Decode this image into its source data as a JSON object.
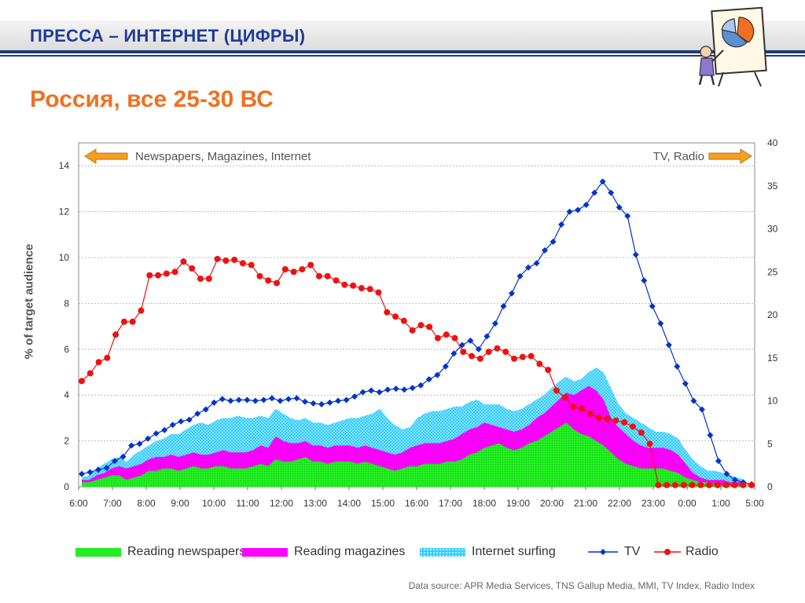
{
  "header": {
    "title": "ПРЕССА – ИНТЕРНЕТ  (ЦИФРЫ)",
    "subtitle": "Россия, все 25-30 ВС"
  },
  "colors": {
    "title": "#1f3a9a",
    "subtitle": "#f07020",
    "newspapers": "#22ee22",
    "magazines": "#ff00ff",
    "internet": "#33ccff",
    "tv": "#0033cc",
    "radio": "#ee1111",
    "arrow": "#f5a020"
  },
  "source_text": "Data source: APR Media Services, TNS Gallup Media, MMI, TV Index, Radio Index",
  "clipart_icon": "presenter-pie-chart-icon",
  "chart_data": {
    "type": "area",
    "xlabel": "",
    "ylabel": "% of  target audience",
    "left_axis": {
      "min": 0,
      "max": 15,
      "ticks": [
        0,
        2,
        4,
        6,
        8,
        10,
        12,
        14
      ]
    },
    "right_axis": {
      "min": 0,
      "max": 40,
      "ticks": [
        0,
        5,
        10,
        15,
        20,
        25,
        30,
        35,
        40
      ]
    },
    "x_ticks": [
      "6:00",
      "7:00",
      "8:00",
      "9:00",
      "10:00",
      "11:00",
      "12:00",
      "13:00",
      "14:00",
      "15:00",
      "16:00",
      "17:00",
      "18:00",
      "19:00",
      "20:00",
      "21:00",
      "22:00",
      "23:00",
      "0:00",
      "1:00",
      "5:00"
    ],
    "left_arrow_label": "Newspapers, Magazines, Internet",
    "right_arrow_label": "TV, Radio",
    "grid": true,
    "legend_position": "bottom",
    "series": [
      {
        "name": "Reading newspapers",
        "kind": "area",
        "axis": "left",
        "values": [
          0.2,
          0.2,
          0.3,
          0.4,
          0.5,
          0.5,
          0.3,
          0.4,
          0.5,
          0.7,
          0.7,
          0.8,
          0.8,
          0.7,
          0.8,
          0.9,
          0.8,
          0.8,
          0.9,
          0.9,
          0.8,
          0.8,
          0.8,
          0.9,
          1.0,
          0.9,
          1.2,
          1.1,
          1.1,
          1.2,
          1.3,
          1.1,
          1.1,
          1.0,
          1.1,
          1.1,
          1.1,
          1.0,
          1.1,
          1.0,
          0.9,
          0.8,
          0.7,
          0.8,
          0.9,
          0.9,
          1.0,
          1.0,
          1.0,
          1.1,
          1.1,
          1.2,
          1.4,
          1.5,
          1.7,
          1.8,
          1.9,
          1.7,
          1.6,
          1.7,
          1.9,
          2.0,
          2.2,
          2.4,
          2.6,
          2.8,
          2.5,
          2.3,
          2.2,
          2.0,
          1.8,
          1.5,
          1.2,
          1.0,
          0.9,
          0.8,
          0.8,
          0.8,
          0.8,
          0.7,
          0.6,
          0.4,
          0.3,
          0.2,
          0.2,
          0.1,
          0.1,
          0.1,
          0.1,
          0.1
        ]
      },
      {
        "name": "Reading magazines",
        "kind": "area",
        "axis": "left",
        "values": [
          0.3,
          0.3,
          0.5,
          0.6,
          0.8,
          0.9,
          0.8,
          0.9,
          1.0,
          1.2,
          1.3,
          1.3,
          1.4,
          1.3,
          1.4,
          1.5,
          1.4,
          1.4,
          1.5,
          1.6,
          1.5,
          1.5,
          1.5,
          1.6,
          1.8,
          1.7,
          2.2,
          2.0,
          1.9,
          1.9,
          2.0,
          1.8,
          1.8,
          1.7,
          1.8,
          1.8,
          1.8,
          1.7,
          1.8,
          1.7,
          1.6,
          1.5,
          1.4,
          1.5,
          1.7,
          1.8,
          1.9,
          1.9,
          1.9,
          2.0,
          2.1,
          2.3,
          2.5,
          2.6,
          2.8,
          2.7,
          2.6,
          2.5,
          2.4,
          2.5,
          2.7,
          3.0,
          3.2,
          3.5,
          3.8,
          4.1,
          4.0,
          4.2,
          4.4,
          4.2,
          3.8,
          3.0,
          2.6,
          2.3,
          2.0,
          1.8,
          1.7,
          1.7,
          1.7,
          1.6,
          1.4,
          1.0,
          0.6,
          0.4,
          0.3,
          0.3,
          0.3,
          0.2,
          0.2,
          0.2
        ]
      },
      {
        "name": "Internet surfing",
        "kind": "area",
        "axis": "left",
        "values": [
          0.4,
          0.5,
          0.8,
          1.0,
          1.2,
          1.3,
          1.1,
          1.4,
          1.6,
          1.8,
          2.0,
          2.1,
          2.3,
          2.3,
          2.5,
          2.7,
          2.8,
          2.7,
          2.9,
          3.0,
          3.0,
          3.1,
          3.0,
          3.0,
          3.1,
          3.0,
          3.4,
          3.2,
          3.0,
          2.9,
          3.0,
          2.8,
          2.8,
          2.7,
          2.8,
          2.9,
          3.0,
          3.0,
          3.1,
          3.2,
          3.4,
          3.0,
          2.7,
          2.5,
          2.6,
          3.0,
          3.2,
          3.3,
          3.3,
          3.4,
          3.5,
          3.5,
          3.7,
          3.8,
          3.6,
          3.6,
          3.6,
          3.4,
          3.3,
          3.4,
          3.6,
          3.8,
          4.0,
          4.3,
          4.6,
          4.8,
          4.6,
          4.7,
          5.0,
          5.2,
          5.0,
          4.3,
          3.6,
          3.2,
          3.0,
          2.8,
          2.6,
          2.4,
          2.4,
          2.3,
          2.1,
          1.6,
          1.2,
          0.9,
          0.7,
          0.7,
          0.6,
          0.5,
          0.4,
          0.3
        ]
      },
      {
        "name": "TV",
        "kind": "line",
        "axis": "right",
        "values": [
          1.5,
          1.7,
          2.0,
          2.2,
          3.0,
          3.5,
          4.8,
          5.0,
          5.6,
          6.2,
          6.6,
          7.2,
          7.6,
          7.8,
          8.5,
          9.0,
          9.8,
          10.2,
          10.0,
          10.1,
          10.1,
          10.0,
          10.1,
          10.3,
          10.0,
          10.2,
          10.3,
          9.9,
          9.7,
          9.6,
          9.8,
          10.0,
          10.1,
          10.5,
          11.0,
          11.2,
          11.0,
          11.3,
          11.4,
          11.3,
          11.5,
          11.8,
          12.5,
          13.0,
          14.0,
          15.5,
          16.5,
          17.0,
          16.0,
          17.5,
          19.0,
          21.0,
          22.5,
          24.5,
          25.5,
          26.0,
          27.5,
          28.5,
          30.5,
          32.0,
          32.2,
          32.8,
          34.2,
          35.5,
          34.2,
          32.5,
          31.5,
          27.0,
          24.0,
          21.0,
          19.0,
          16.5,
          14.0,
          12.0,
          10.0,
          9.0,
          6.0,
          3.0,
          1.5,
          0.8,
          0.5,
          0.3
        ]
      },
      {
        "name": "Radio",
        "kind": "line",
        "axis": "right",
        "values": [
          12.3,
          13.2,
          14.5,
          15.0,
          17.7,
          19.2,
          19.2,
          20.5,
          24.6,
          24.6,
          24.8,
          25.0,
          26.2,
          25.4,
          24.2,
          24.2,
          26.5,
          26.3,
          26.4,
          26.0,
          25.8,
          24.5,
          24.0,
          23.7,
          25.3,
          25.0,
          25.3,
          25.8,
          24.5,
          24.5,
          24.0,
          23.5,
          23.4,
          23.1,
          23.0,
          22.6,
          20.3,
          19.8,
          19.3,
          18.2,
          18.8,
          18.6,
          17.3,
          17.7,
          17.3,
          15.7,
          15.2,
          14.9,
          15.7,
          16.1,
          15.7,
          14.9,
          15.1,
          15.2,
          14.3,
          13.6,
          11.2,
          10.4,
          9.3,
          9.1,
          8.5,
          8.0,
          7.9,
          7.7,
          7.5,
          7.0,
          6.3,
          5.0,
          0.2,
          0.2,
          0.2,
          0.2,
          0.2,
          0.2,
          0.2,
          0.2,
          0.2,
          0.2,
          0.2,
          0.2
        ]
      }
    ]
  }
}
